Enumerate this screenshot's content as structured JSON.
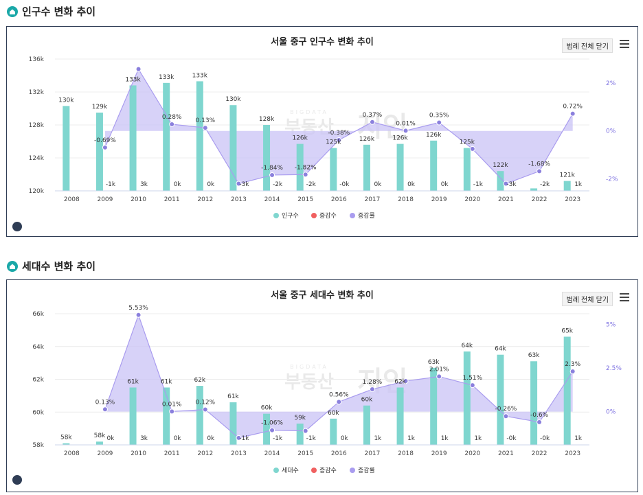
{
  "sections": [
    {
      "title": "인구수 변화 추이"
    },
    {
      "title": "세대수 변화 추이"
    }
  ],
  "legend_toggle": "범례 전체 닫기",
  "watermark_main": "부동산",
  "watermark_big": "지인",
  "watermark_sub": "BIGDATA",
  "colors": {
    "bar": "#7fd6cf",
    "area": "#c9c3f5",
    "line": "#a99cef",
    "point": "#8b80dd",
    "change": "#f06060",
    "pct_axis": "#7b6fe0"
  },
  "chart_data": [
    {
      "type": "bar",
      "title": "서울 중구 인구수 변화 추이",
      "categories": [
        "2008",
        "2009",
        "2010",
        "2011",
        "2012",
        "2013",
        "2014",
        "2015",
        "2016",
        "2017",
        "2018",
        "2019",
        "2020",
        "2021",
        "2022",
        "2023"
      ],
      "ylim": [
        120,
        136
      ],
      "yticks": [
        "120k",
        "124k",
        "128k",
        "132k",
        "136k"
      ],
      "pct_lim": [
        -2.5,
        3
      ],
      "pct_ticks": [
        "-2%",
        "0%",
        "2%"
      ],
      "series": [
        {
          "name": "인구수",
          "values": [
            130.3,
            129.5,
            132.8,
            133.1,
            133.3,
            130.4,
            128.0,
            125.7,
            125.2,
            125.6,
            125.7,
            126.1,
            125.2,
            122.4,
            120.3,
            121.2
          ],
          "labels": [
            "130k",
            "129k",
            "133k",
            "133k",
            "133k",
            "130k",
            "128k",
            "126k",
            "125k",
            "126k",
            "126k",
            "126k",
            "125k",
            "122k",
            "",
            "121k"
          ]
        },
        {
          "name": "증감수",
          "labels": [
            "",
            "-1k",
            "3k",
            "0k",
            "0k",
            "-3k",
            "-2k",
            "-2k",
            "-0k",
            "0k",
            "0k",
            "0k",
            "-1k",
            "-3k",
            "-2k",
            "1k"
          ]
        },
        {
          "name": "증감률",
          "values": [
            null,
            -0.69,
            2.58,
            0.28,
            0.13,
            -2.2,
            -1.84,
            -1.82,
            -0.38,
            0.37,
            0.01,
            0.35,
            -0.75,
            -2.2,
            -1.68,
            0.72
          ],
          "labels": [
            "",
            "-0.69%",
            "",
            "0.28%",
            "0.13%",
            "",
            "-1.84%",
            "-1.82%",
            "-0.38%",
            "0.37%",
            "0.01%",
            "0.35%",
            "",
            "",
            "-1.68%",
            "0.72%"
          ]
        }
      ]
    },
    {
      "type": "bar",
      "title": "서울 중구 세대수 변화 추이",
      "categories": [
        "2008",
        "2009",
        "2010",
        "2011",
        "2012",
        "2013",
        "2014",
        "2015",
        "2016",
        "2017",
        "2018",
        "2019",
        "2020",
        "2021",
        "2022",
        "2023"
      ],
      "ylim": [
        58,
        66
      ],
      "yticks": [
        "58k",
        "60k",
        "62k",
        "64k",
        "66k"
      ],
      "pct_lim": [
        -1.9,
        5.6
      ],
      "pct_ticks": [
        "0%",
        "2.5%",
        "5%"
      ],
      "series": [
        {
          "name": "세대수",
          "values": [
            58.1,
            58.2,
            61.5,
            61.5,
            61.6,
            60.6,
            59.9,
            59.3,
            59.6,
            60.4,
            61.5,
            62.7,
            63.7,
            63.5,
            63.1,
            64.6
          ],
          "labels": [
            "58k",
            "58k",
            "61k",
            "61k",
            "62k",
            "61k",
            "60k",
            "59k",
            "60k",
            "60k",
            "62k",
            "63k",
            "64k",
            "64k",
            "63k",
            "65k"
          ]
        },
        {
          "name": "증감수",
          "labels": [
            "",
            "0k",
            "3k",
            "0k",
            "0k",
            "-1k",
            "-1k",
            "-1k",
            "0k",
            "1k",
            "1k",
            "1k",
            "1k",
            "-0k",
            "-0k",
            "1k"
          ]
        },
        {
          "name": "증감률",
          "values": [
            null,
            0.13,
            5.53,
            0.01,
            0.12,
            -1.5,
            -1.06,
            -1.1,
            0.56,
            1.28,
            1.75,
            2.01,
            1.51,
            -0.26,
            -0.6,
            2.3
          ],
          "labels": [
            "",
            "0.13%",
            "5.53%",
            "0.01%",
            "0.12%",
            "",
            "-1.06%",
            "",
            "0.56%",
            "1.28%",
            "",
            "2.01%",
            "1.51%",
            "-0.26%",
            "-0.6%",
            "2.3%"
          ]
        }
      ]
    }
  ]
}
